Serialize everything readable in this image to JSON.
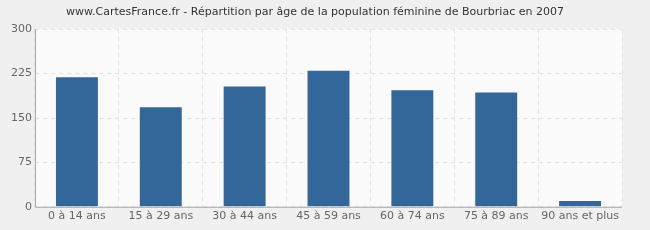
{
  "chart_data": {
    "type": "bar",
    "title": "www.CartesFrance.fr - Répartition par âge de la population féminine de Bourbriac en 2007",
    "categories": [
      "0 à 14 ans",
      "15 à 29 ans",
      "30 à 44 ans",
      "45 à 59 ans",
      "60 à 74 ans",
      "75 à 89 ans",
      "90 ans et plus"
    ],
    "values": [
      219,
      168,
      203,
      230,
      197,
      193,
      10
    ],
    "color": "#336699",
    "ylim": [
      0,
      300
    ],
    "yticks": [
      0,
      75,
      150,
      225,
      300
    ],
    "grid": true
  }
}
